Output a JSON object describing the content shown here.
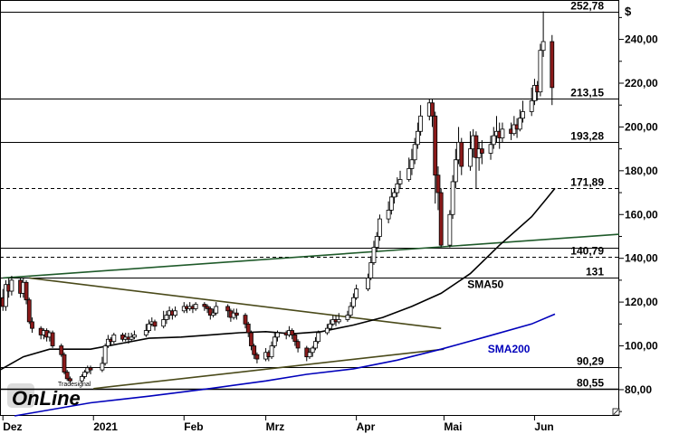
{
  "chart_data": {
    "type": "candlestick",
    "unit_label": "$",
    "ylim": [
      68,
      258
    ],
    "y_ticks": [
      {
        "value": 80,
        "label": "80,00"
      },
      {
        "value": 100,
        "label": "100,00"
      },
      {
        "value": 120,
        "label": "120,00"
      },
      {
        "value": 140,
        "label": "140,00"
      },
      {
        "value": 160,
        "label": "160,00"
      },
      {
        "value": 180,
        "label": "180,00"
      },
      {
        "value": 200,
        "label": "200,00"
      },
      {
        "value": 220,
        "label": "220,00"
      },
      {
        "value": 240,
        "label": "240,00"
      }
    ],
    "x_range": [
      "2020-11-30",
      "2021-06-30"
    ],
    "x_ticks": [
      {
        "date": "2020-12-01",
        "label": "Dez"
      },
      {
        "date": "2021-01-01",
        "label": "2021"
      },
      {
        "date": "2021-02-01",
        "label": "Feb"
      },
      {
        "date": "2021-03-01",
        "label": "Mrz"
      },
      {
        "date": "2021-04-01",
        "label": "Apr"
      },
      {
        "date": "2021-05-01",
        "label": "Mai"
      },
      {
        "date": "2021-06-01",
        "label": "Jun"
      }
    ],
    "levels": [
      {
        "value": 252.78,
        "label": "252,78",
        "style": "solid"
      },
      {
        "value": 213.15,
        "label": "213,15",
        "style": "solid"
      },
      {
        "value": 193.28,
        "label": "193,28",
        "style": "solid"
      },
      {
        "value": 171.89,
        "label": "171,89",
        "style": "dashed"
      },
      {
        "value": 144.9,
        "label": "",
        "style": "solid"
      },
      {
        "value": 140.79,
        "label": "140,79",
        "style": "dashed"
      },
      {
        "value": 131,
        "label": "131",
        "style": "solid"
      },
      {
        "value": 90.29,
        "label": "90,29",
        "style": "solid"
      },
      {
        "value": 80.55,
        "label": "80,55",
        "style": "solid-bold"
      }
    ],
    "trendlines": [
      {
        "name": "uptrend-long",
        "color": "#1f5a2a",
        "points": [
          [
            "2020-12-01",
            131
          ],
          [
            "2021-06-30",
            151
          ]
        ]
      },
      {
        "name": "downtrend",
        "color": "#4a4a1a",
        "points": [
          [
            "2020-12-10",
            131
          ],
          [
            "2021-04-30",
            108
          ]
        ]
      },
      {
        "name": "triangle-support",
        "color": "#4a4a1a",
        "points": [
          [
            "2021-01-01",
            80.5
          ],
          [
            "2021-05-01",
            98.5
          ]
        ]
      }
    ],
    "sma": [
      {
        "label": "SMA50",
        "color": "#000000",
        "label_at": [
          "2021-05-09",
          126.5
        ],
        "points": [
          [
            "2020-11-30",
            89
          ],
          [
            "2020-12-08",
            95
          ],
          [
            "2020-12-17",
            98.5
          ],
          [
            "2020-12-31",
            98.5
          ],
          [
            "2021-01-10",
            101
          ],
          [
            "2021-01-20",
            103.5
          ],
          [
            "2021-01-31",
            104
          ],
          [
            "2021-02-10",
            105
          ],
          [
            "2021-02-20",
            106
          ],
          [
            "2021-03-01",
            106.5
          ],
          [
            "2021-03-10",
            105.5
          ],
          [
            "2021-03-20",
            106.5
          ],
          [
            "2021-03-31",
            109.5
          ],
          [
            "2021-04-10",
            113
          ],
          [
            "2021-04-20",
            118
          ],
          [
            "2021-04-30",
            124
          ],
          [
            "2021-05-10",
            133
          ],
          [
            "2021-05-20",
            146
          ],
          [
            "2021-05-31",
            159
          ],
          [
            "2021-06-05",
            167
          ],
          [
            "2021-06-08",
            172
          ]
        ]
      },
      {
        "label": "SMA200",
        "color": "#0000bb",
        "label_at": [
          "2021-05-16",
          97
        ],
        "points": [
          [
            "2020-12-05",
            68
          ],
          [
            "2020-12-31",
            74
          ],
          [
            "2021-01-20",
            77
          ],
          [
            "2021-02-10",
            80.5
          ],
          [
            "2021-03-01",
            84
          ],
          [
            "2021-03-15",
            87
          ],
          [
            "2021-03-31",
            89.5
          ],
          [
            "2021-04-15",
            93.5
          ],
          [
            "2021-04-30",
            98.5
          ],
          [
            "2021-05-15",
            104
          ],
          [
            "2021-05-31",
            110
          ],
          [
            "2021-06-08",
            114.5
          ]
        ]
      }
    ],
    "candles": [
      [
        "2020-12-01",
        122,
        118,
        126,
        116
      ],
      [
        "2020-12-02",
        118,
        128,
        130,
        116
      ],
      [
        "2020-12-03",
        128,
        125,
        131,
        122
      ],
      [
        "2020-12-04",
        125,
        130,
        132,
        123
      ],
      [
        "2020-12-07",
        130,
        124,
        131,
        122
      ],
      [
        "2020-12-08",
        124,
        129,
        131,
        122
      ],
      [
        "2020-12-09",
        129,
        121,
        130,
        119
      ],
      [
        "2020-12-10",
        121,
        111,
        122,
        110
      ],
      [
        "2020-12-11",
        111,
        108,
        113,
        106
      ],
      [
        "2020-12-14",
        108,
        105,
        109,
        103
      ],
      [
        "2020-12-15",
        105,
        107,
        108,
        103
      ],
      [
        "2020-12-16",
        107,
        104,
        108,
        102
      ],
      [
        "2020-12-17",
        104,
        106,
        107,
        102
      ],
      [
        "2020-12-18",
        106,
        100,
        107,
        99
      ],
      [
        "2020-12-21",
        100,
        96,
        101,
        95
      ],
      [
        "2020-12-22",
        96,
        88,
        97,
        87
      ],
      [
        "2020-12-23",
        88,
        85,
        89,
        84
      ],
      [
        "2020-12-24",
        85,
        84,
        86,
        83
      ],
      [
        "2020-12-28",
        84,
        86,
        87,
        83
      ],
      [
        "2020-12-29",
        86,
        88,
        89,
        85
      ],
      [
        "2020-12-30",
        88,
        90,
        91,
        87
      ],
      [
        "2020-12-31",
        90,
        89,
        91,
        87
      ],
      [
        "2021-01-04",
        89,
        92,
        95,
        88
      ],
      [
        "2021-01-05",
        92,
        100,
        101,
        91
      ],
      [
        "2021-01-06",
        100,
        103,
        105,
        99
      ],
      [
        "2021-01-07",
        103,
        102,
        104,
        100
      ],
      [
        "2021-01-08",
        102,
        105,
        106,
        101
      ],
      [
        "2021-01-11",
        105,
        103,
        106,
        102
      ],
      [
        "2021-01-12",
        103,
        104,
        106,
        102
      ],
      [
        "2021-01-13",
        104,
        103,
        106,
        101
      ],
      [
        "2021-01-14",
        103,
        104,
        106,
        102
      ],
      [
        "2021-01-15",
        104,
        105,
        107,
        103
      ],
      [
        "2021-01-19",
        105,
        107,
        110,
        104
      ],
      [
        "2021-01-20",
        107,
        110,
        112,
        106
      ],
      [
        "2021-01-21",
        110,
        111,
        113,
        109
      ],
      [
        "2021-01-22",
        111,
        109,
        112,
        107
      ],
      [
        "2021-01-25",
        109,
        112,
        116,
        108
      ],
      [
        "2021-01-26",
        112,
        114,
        116,
        110
      ],
      [
        "2021-01-27",
        114,
        116,
        118,
        112
      ],
      [
        "2021-01-28",
        116,
        114,
        117,
        112
      ],
      [
        "2021-01-29",
        114,
        116,
        118,
        113
      ],
      [
        "2021-02-01",
        116,
        118,
        120,
        115
      ],
      [
        "2021-02-02",
        118,
        117,
        119,
        115
      ],
      [
        "2021-02-03",
        117,
        118,
        120,
        116
      ],
      [
        "2021-02-04",
        118,
        117,
        119,
        115
      ],
      [
        "2021-02-05",
        117,
        119,
        120,
        116
      ],
      [
        "2021-02-08",
        119,
        118,
        120,
        116
      ],
      [
        "2021-02-09",
        118,
        117,
        119,
        115
      ],
      [
        "2021-02-10",
        117,
        114,
        118,
        112
      ],
      [
        "2021-02-11",
        114,
        115,
        117,
        113
      ],
      [
        "2021-02-12",
        115,
        118,
        120,
        114
      ],
      [
        "2021-02-16",
        118,
        116,
        119,
        113
      ],
      [
        "2021-02-17",
        116,
        113,
        117,
        111
      ],
      [
        "2021-02-18",
        113,
        115,
        117,
        112
      ],
      [
        "2021-02-19",
        115,
        114,
        117,
        112
      ],
      [
        "2021-02-22",
        114,
        110,
        115,
        108
      ],
      [
        "2021-02-23",
        110,
        106,
        111,
        104
      ],
      [
        "2021-02-24",
        106,
        100,
        107,
        98
      ],
      [
        "2021-02-25",
        100,
        96,
        101,
        94
      ],
      [
        "2021-02-26",
        96,
        94,
        97,
        92
      ],
      [
        "2021-03-01",
        94,
        97,
        99,
        93
      ],
      [
        "2021-03-02",
        97,
        95,
        98,
        93
      ],
      [
        "2021-03-03",
        95,
        100,
        102,
        94
      ],
      [
        "2021-03-04",
        100,
        104,
        106,
        99
      ],
      [
        "2021-03-05",
        104,
        106,
        107,
        102
      ],
      [
        "2021-03-08",
        106,
        105,
        107,
        103
      ],
      [
        "2021-03-09",
        105,
        107,
        109,
        104
      ],
      [
        "2021-03-10",
        107,
        105,
        108,
        103
      ],
      [
        "2021-03-11",
        105,
        102,
        106,
        100
      ],
      [
        "2021-03-12",
        102,
        99,
        103,
        97
      ],
      [
        "2021-03-15",
        99,
        95,
        100,
        93
      ],
      [
        "2021-03-16",
        95,
        97,
        99,
        94
      ],
      [
        "2021-03-17",
        97,
        99,
        100,
        95
      ],
      [
        "2021-03-18",
        99,
        102,
        104,
        98
      ],
      [
        "2021-03-19",
        102,
        106,
        107,
        101
      ],
      [
        "2021-03-22",
        106,
        108,
        110,
        105
      ],
      [
        "2021-03-23",
        108,
        110,
        112,
        107
      ],
      [
        "2021-03-24",
        110,
        112,
        114,
        109
      ],
      [
        "2021-03-25",
        112,
        111,
        114,
        109
      ],
      [
        "2021-03-26",
        111,
        112,
        115,
        110
      ],
      [
        "2021-03-29",
        112,
        114,
        116,
        111
      ],
      [
        "2021-03-30",
        114,
        118,
        120,
        113
      ],
      [
        "2021-03-31",
        118,
        122,
        124,
        117
      ],
      [
        "2021-04-01",
        122,
        126,
        128,
        121
      ],
      [
        "2021-04-05",
        126,
        131,
        133,
        125
      ],
      [
        "2021-04-06",
        131,
        138,
        141,
        130
      ],
      [
        "2021-04-07",
        138,
        145,
        148,
        137
      ],
      [
        "2021-04-08",
        145,
        150,
        152,
        143
      ],
      [
        "2021-04-09",
        150,
        158,
        160,
        148
      ],
      [
        "2021-04-12",
        158,
        162,
        166,
        156
      ],
      [
        "2021-04-13",
        162,
        168,
        172,
        160
      ],
      [
        "2021-04-14",
        168,
        170,
        172,
        165
      ],
      [
        "2021-04-15",
        170,
        174,
        177,
        168
      ],
      [
        "2021-04-16",
        174,
        176,
        180,
        172
      ],
      [
        "2021-04-19",
        176,
        181,
        186,
        175
      ],
      [
        "2021-04-20",
        181,
        185,
        190,
        178
      ],
      [
        "2021-04-21",
        185,
        192,
        195,
        183
      ],
      [
        "2021-04-22",
        192,
        198,
        202,
        190
      ],
      [
        "2021-04-23",
        198,
        205,
        210,
        196
      ],
      [
        "2021-04-26",
        205,
        211,
        213,
        203
      ],
      [
        "2021-04-27",
        211,
        205,
        213,
        200
      ],
      [
        "2021-04-28",
        205,
        178,
        207,
        165
      ],
      [
        "2021-04-29",
        178,
        170,
        182,
        162
      ],
      [
        "2021-04-30",
        170,
        146,
        172,
        145
      ],
      [
        "2021-05-03",
        146,
        160,
        162,
        145
      ],
      [
        "2021-05-04",
        160,
        175,
        178,
        158
      ],
      [
        "2021-05-05",
        175,
        185,
        190,
        172
      ],
      [
        "2021-05-06",
        185,
        193,
        200,
        183
      ],
      [
        "2021-05-07",
        193,
        182,
        195,
        178
      ],
      [
        "2021-05-10",
        182,
        190,
        198,
        180
      ],
      [
        "2021-05-11",
        190,
        196,
        199,
        186
      ],
      [
        "2021-05-12",
        196,
        186,
        198,
        172
      ],
      [
        "2021-05-13",
        186,
        190,
        193,
        180
      ],
      [
        "2021-05-14",
        190,
        188,
        194,
        183
      ],
      [
        "2021-05-17",
        188,
        192,
        196,
        185
      ],
      [
        "2021-05-18",
        192,
        196,
        200,
        190
      ],
      [
        "2021-05-19",
        196,
        198,
        205,
        193
      ],
      [
        "2021-05-20",
        198,
        195,
        202,
        190
      ],
      [
        "2021-05-21",
        195,
        199,
        202,
        193
      ],
      [
        "2021-05-24",
        199,
        197,
        202,
        194
      ],
      [
        "2021-05-25",
        197,
        201,
        205,
        196
      ],
      [
        "2021-05-26",
        201,
        199,
        204,
        195
      ],
      [
        "2021-05-27",
        199,
        204,
        208,
        198
      ],
      [
        "2021-05-28",
        204,
        207,
        212,
        202
      ],
      [
        "2021-05-31",
        207,
        212,
        218,
        205
      ],
      [
        "2021-06-01",
        212,
        219,
        222,
        210
      ],
      [
        "2021-06-02",
        219,
        216,
        221,
        212
      ],
      [
        "2021-06-03",
        216,
        235,
        238,
        214
      ],
      [
        "2021-06-04",
        235,
        239,
        252.78,
        232
      ],
      [
        "2021-06-07",
        239,
        218,
        242,
        210
      ]
    ]
  },
  "brand": {
    "logo_text": "OnLine",
    "logo_small": "Tradesignal"
  }
}
